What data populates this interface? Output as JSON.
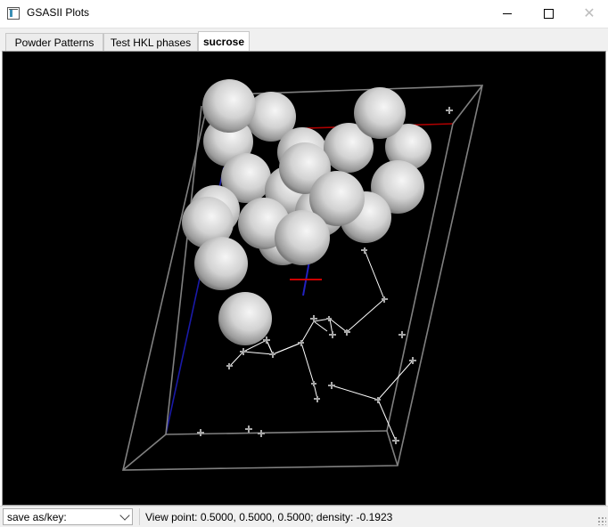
{
  "window": {
    "title": "GSASII Plots",
    "icon": "app-window-icon"
  },
  "tabs": [
    {
      "label": "Powder Patterns",
      "active": false
    },
    {
      "label": "Test HKL phases",
      "active": false
    },
    {
      "label": "sucrose",
      "active": true
    }
  ],
  "statusbar": {
    "save_select_value": "save as/key:",
    "status_text": "View point: 0.5000, 0.5000, 0.5000; density: -0.1923"
  },
  "colors": {
    "background": "#000000",
    "cell_edges": "#7f7f7f",
    "a_axis": "#cc0000",
    "c_axis": "#1a1aa8",
    "atom_sphere": "#d9d9d9",
    "bonds": "#ffffff",
    "crosses": "#9a9a9a"
  }
}
